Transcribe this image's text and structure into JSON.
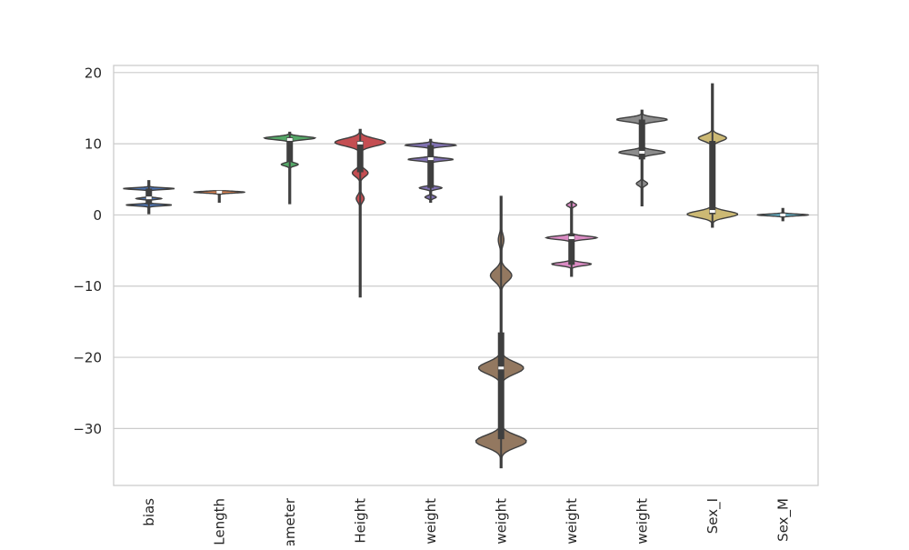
{
  "chart_data": {
    "type": "violin",
    "title": "",
    "xlabel": "",
    "ylabel": "",
    "ylim": [
      -38,
      21
    ],
    "yticks": [
      -30,
      -20,
      -10,
      0,
      10,
      20
    ],
    "grid": "horizontal",
    "categories": [
      {
        "label": "bias",
        "color": "#4c72b0",
        "min": 0.2,
        "max": 4.8,
        "q1": 1.5,
        "median": 2.4,
        "q3": 3.7,
        "modes": [
          {
            "y": 3.7,
            "w": 0.9
          },
          {
            "y": 2.3,
            "w": 0.45
          },
          {
            "y": 1.4,
            "w": 0.8
          }
        ]
      },
      {
        "label": "Length",
        "color": "#dd8452",
        "min": 1.8,
        "max": 3.4,
        "q1": 3.1,
        "median": 3.2,
        "q3": 3.25,
        "modes": [
          {
            "y": 3.2,
            "w": 0.9
          }
        ]
      },
      {
        "label": "ameter",
        "color": "#55a868",
        "min": 1.6,
        "max": 11.6,
        "q1": 7.5,
        "median": 10.6,
        "q3": 10.9,
        "modes": [
          {
            "y": 10.8,
            "w": 0.9
          },
          {
            "y": 7.1,
            "w": 0.3
          }
        ]
      },
      {
        "label": "Height",
        "color": "#c44e52",
        "min": -11.5,
        "max": 12.0,
        "q1": 6.0,
        "median": 10.1,
        "q3": 10.4,
        "modes": [
          {
            "y": 10.2,
            "w": 0.9
          },
          {
            "y": 5.9,
            "w": 0.28
          },
          {
            "y": 2.3,
            "w": 0.14
          }
        ]
      },
      {
        "label": "weight",
        "color": "#8172b3",
        "min": 1.8,
        "max": 10.6,
        "q1": 3.8,
        "median": 7.9,
        "q3": 9.8,
        "modes": [
          {
            "y": 9.8,
            "w": 0.9
          },
          {
            "y": 7.8,
            "w": 0.8
          },
          {
            "y": 3.8,
            "w": 0.4
          },
          {
            "y": 2.5,
            "w": 0.2
          }
        ]
      },
      {
        "label": "weight",
        "color": "#937860",
        "min": -35.5,
        "max": 2.6,
        "q1": -31.5,
        "median": -21.5,
        "q3": -16.5,
        "modes": [
          {
            "y": -31.8,
            "w": 0.9
          },
          {
            "y": -21.5,
            "w": 0.8
          },
          {
            "y": -8.5,
            "w": 0.38
          },
          {
            "y": -3.5,
            "w": 0.1
          }
        ]
      },
      {
        "label": "weight",
        "color": "#da8bc3",
        "min": -8.6,
        "max": 1.9,
        "q1": -7.0,
        "median": -3.2,
        "q3": -2.6,
        "modes": [
          {
            "y": -3.2,
            "w": 0.9
          },
          {
            "y": -6.9,
            "w": 0.7
          },
          {
            "y": 1.4,
            "w": 0.18
          }
        ]
      },
      {
        "label": "weight",
        "color": "#8c8c8c",
        "min": 1.3,
        "max": 14.7,
        "q1": 7.8,
        "median": 8.8,
        "q3": 13.4,
        "modes": [
          {
            "y": 13.4,
            "w": 0.9
          },
          {
            "y": 8.8,
            "w": 0.82
          },
          {
            "y": 4.4,
            "w": 0.2
          }
        ]
      },
      {
        "label": "Sex_I",
        "color": "#ccb974",
        "min": -1.7,
        "max": 18.4,
        "q1": 0.1,
        "median": 0.5,
        "q3": 10.4,
        "modes": [
          {
            "y": 0.1,
            "w": 0.9
          },
          {
            "y": 10.8,
            "w": 0.5
          },
          {
            "y": 5.0,
            "w": 0.05
          }
        ]
      },
      {
        "label": "Sex_M",
        "color": "#64b5cd",
        "min": -0.8,
        "max": 0.9,
        "q1": -0.05,
        "median": 0.0,
        "q3": 0.05,
        "modes": [
          {
            "y": 0.0,
            "w": 0.9
          }
        ]
      }
    ]
  }
}
